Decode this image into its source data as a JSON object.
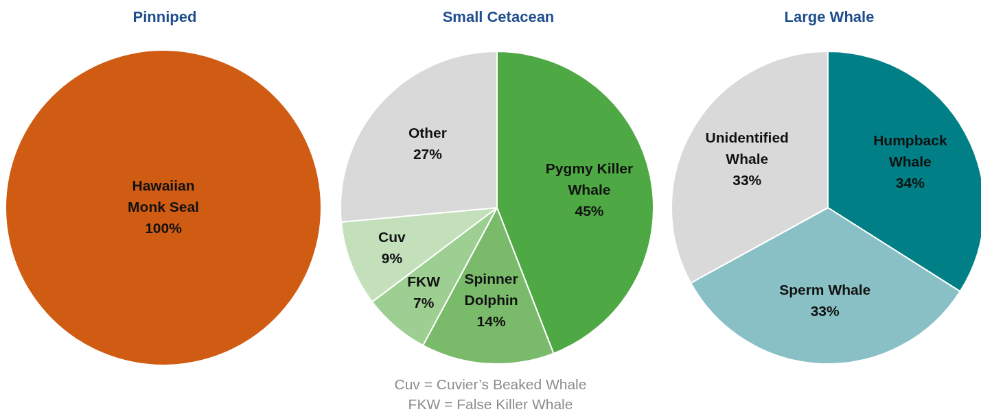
{
  "chart_data": [
    {
      "type": "pie",
      "title": "Pinniped",
      "categories": [
        "Hawaiian Monk Seal"
      ],
      "values": [
        100
      ],
      "colors": [
        "#d05c14"
      ],
      "value_labels": [
        "100%"
      ]
    },
    {
      "type": "pie",
      "title": "Small Cetacean",
      "categories": [
        "Pygmy Killer Whale",
        "Spinner Dolphin",
        "FKW",
        "Cuv",
        "Other"
      ],
      "values": [
        45,
        14,
        7,
        9,
        27
      ],
      "colors": [
        "#4ea843",
        "#7aba6b",
        "#9ecf92",
        "#c3e0bb",
        "#d9d9d9"
      ],
      "value_labels": [
        "45%",
        "14%",
        "7%",
        "9%",
        "27%"
      ],
      "annotations": [
        "Cuv = Cuvier’s Beaked Whale",
        "FKW = False Killer Whale"
      ]
    },
    {
      "type": "pie",
      "title": "Large Whale",
      "categories": [
        "Humpback Whale",
        "Sperm Whale",
        "Unidentified Whale"
      ],
      "values": [
        34,
        33,
        33
      ],
      "colors": [
        "#007f86",
        "#88c0c5",
        "#d9d9d9"
      ],
      "value_labels": [
        "34%",
        "33%",
        "33%"
      ]
    }
  ]
}
